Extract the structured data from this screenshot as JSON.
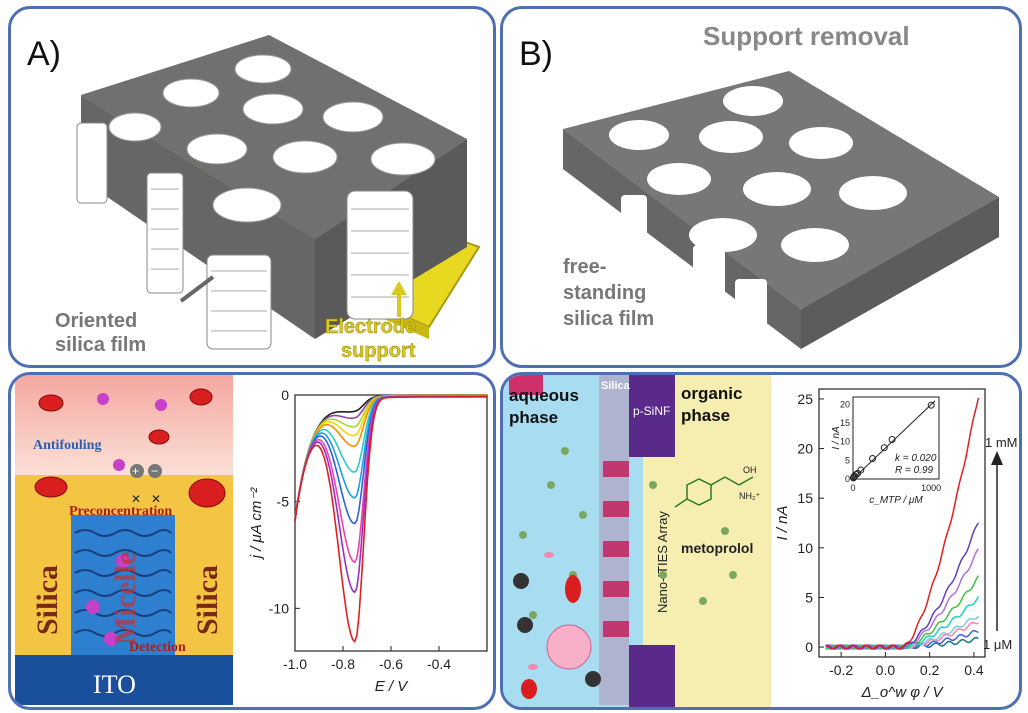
{
  "panelA": {
    "letter": "A)",
    "label_film": [
      "Oriented",
      "silica film"
    ],
    "label_support": [
      "Electrode",
      "support"
    ]
  },
  "panelB": {
    "letter": "B)",
    "title": "Support removal",
    "label_film": [
      "free-",
      "standing",
      "silica film"
    ]
  },
  "panelC": {
    "scheme": {
      "antifouling": "Antifouling",
      "preconcentration": "Preconcentration",
      "silica_left": "Silica",
      "silica_right": "Silica",
      "micelle": "Micelle",
      "detection": "Detection",
      "ito": "ITO"
    },
    "chart_data": {
      "type": "line",
      "xlabel": "E / V",
      "ylabel": "j / μA cm⁻²",
      "xlim": [
        -1.0,
        -0.2
      ],
      "ylim": [
        -12,
        0
      ],
      "xticks": [
        "-1.0",
        "-0.8",
        "-0.6",
        "-0.4"
      ],
      "yticks": [
        "0",
        "-5",
        "-10"
      ],
      "peak_x": -0.75,
      "series": [
        {
          "color": "#222222",
          "peak": -0.6
        },
        {
          "color": "#8a4a9a",
          "peak": -0.9
        },
        {
          "color": "#a8d830",
          "peak": -1.3
        },
        {
          "color": "#f2d800",
          "peak": -1.7
        },
        {
          "color": "#ff8c00",
          "peak": -2.2
        },
        {
          "color": "#2ec8c8",
          "peak": -3.4
        },
        {
          "color": "#1aa0e0",
          "peak": -4.6
        },
        {
          "color": "#3060d8",
          "peak": -5.8
        },
        {
          "color": "#ee44aa",
          "peak": -7.6
        },
        {
          "color": "#9a2ec8",
          "peak": -9.0
        },
        {
          "color": "#e02020",
          "peak": -11.3
        }
      ]
    }
  },
  "panelD": {
    "scheme": {
      "aqueous": [
        "aqueous",
        "phase"
      ],
      "silica": "Silica",
      "psinf": "p-SiNF",
      "organic": [
        "organic",
        "phase"
      ],
      "array": "Nano-ITIES Array",
      "drug": "metoprolol",
      "oh": "OH",
      "nh": "NH₂⁺"
    },
    "chart_data": {
      "type": "line",
      "xlabel": "Δ_o^w φ / V",
      "ylabel": "I / nA",
      "xlim": [
        -0.3,
        0.45
      ],
      "ylim": [
        -1,
        26
      ],
      "xticks": [
        "-0.2",
        "0.0",
        "0.2",
        "0.4"
      ],
      "yticks": [
        "0",
        "5",
        "10",
        "15",
        "20",
        "25"
      ],
      "top_label": "1 mM",
      "bottom_label": "1 μM",
      "series": [
        {
          "color": "#1a7a7a",
          "end": 0.8
        },
        {
          "color": "#4060e0",
          "end": 1.6
        },
        {
          "color": "#ff80a0",
          "end": 2.6
        },
        {
          "color": "#80c8e0",
          "end": 3.2
        },
        {
          "color": "#20d0c0",
          "end": 5.0
        },
        {
          "color": "#40c040",
          "end": 7.0
        },
        {
          "color": "#b070e0",
          "end": 9.8
        },
        {
          "color": "#6040c0",
          "end": 12.6
        },
        {
          "color": "#e02020",
          "end": 25.3
        }
      ],
      "inset": {
        "xlabel": "c_MTP / μM",
        "ylabel": "I / nA",
        "xticks": [
          "0",
          "1000"
        ],
        "yticks": [
          "0",
          "5",
          "10",
          "15",
          "20"
        ],
        "k": "k = 0.020",
        "R": "R = 0.99",
        "points": [
          [
            5,
            0.3
          ],
          [
            10,
            0.5
          ],
          [
            20,
            0.8
          ],
          [
            40,
            1.2
          ],
          [
            60,
            1.5
          ],
          [
            100,
            2.4
          ],
          [
            250,
            5.5
          ],
          [
            400,
            8.4
          ],
          [
            500,
            10.6
          ],
          [
            1000,
            19.8
          ]
        ]
      }
    }
  }
}
